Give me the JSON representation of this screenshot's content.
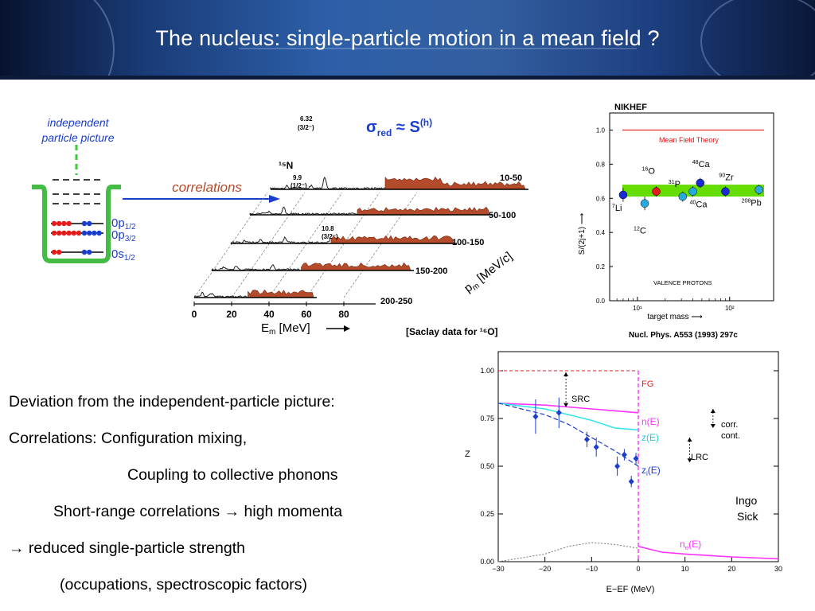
{
  "slide": {
    "title": "The nucleus: single-particle motion in a mean field ?",
    "bullets": [
      "Deviation from the independent-particle picture:",
      "Correlations: Configuration mixing,",
      "Coupling to collective phonons",
      "Short-range correlations → high momenta",
      "→ reduced single-particle strength",
      "(occupations, spectroscopic factors)"
    ],
    "credit": [
      "Ingo",
      "Sick"
    ]
  },
  "colors": {
    "accent_blue": "#1a3dcc",
    "red": "#e31b1b",
    "green": "#66dd00",
    "magenta": "#ff33ff",
    "cyan": "#33e6ee",
    "brown": "#b44b2a"
  },
  "well": {
    "heading": [
      "independent",
      "particle picture"
    ],
    "arrow_label": "correlations",
    "levels": [
      "0p1/2",
      "0p3/2",
      "0s1/2"
    ]
  },
  "spectra": {
    "formula": "σred ≈ S(h)",
    "nucleus": "15N",
    "peak_labels": [
      "6.32",
      "(3/2⁻)",
      "9.9",
      "(1/2⁻)",
      "10.8",
      "(3/2⁻)"
    ],
    "range_labels": [
      "10-50",
      "50-100",
      "100-150",
      "150-200",
      "200-250"
    ],
    "x_ticks": [
      "0",
      "20",
      "40",
      "60",
      "80"
    ],
    "x_label": "Em [MeV]",
    "pm_label": "pm [MeV/c]",
    "source": "[Saclay data for ¹⁶O]"
  },
  "chart_data": [
    {
      "type": "scatter",
      "title": "NIKHEF",
      "subtitle": "Mean Field Theory",
      "xlabel": "target mass",
      "ylabel": "S/(2j+1)",
      "x_scale": "log",
      "xlim": [
        5,
        300
      ],
      "ylim": [
        0.0,
        1.1
      ],
      "x_ticks": [
        "10¹",
        "10²"
      ],
      "y_ticks": [
        "0.0",
        "0.2",
        "0.4",
        "0.6",
        "0.8",
        "1.0"
      ],
      "mean_field_value": 1.0,
      "band": [
        0.61,
        0.68
      ],
      "points": [
        {
          "label": "7Li",
          "x": 7,
          "y": 0.62,
          "err": 0.04,
          "color": "#1a2ad8"
        },
        {
          "label": "12C",
          "x": 12,
          "y": 0.57,
          "err": 0.04,
          "color": "#2aa8e0"
        },
        {
          "label": "16O",
          "x": 16,
          "y": 0.64,
          "err": 0.03,
          "color": "#e31b1b"
        },
        {
          "label": "31P",
          "x": 31,
          "y": 0.61,
          "err": 0.03,
          "color": "#2aa8e0"
        },
        {
          "label": "40Ca",
          "x": 40,
          "y": 0.64,
          "err": 0.03,
          "color": "#2aa8e0"
        },
        {
          "label": "48Ca",
          "x": 48,
          "y": 0.69,
          "err": 0.03,
          "color": "#1a2ad8"
        },
        {
          "label": "90Zr",
          "x": 90,
          "y": 0.64,
          "err": 0.03,
          "color": "#1a2ad8"
        },
        {
          "label": "208Pb",
          "x": 208,
          "y": 0.65,
          "err": 0.03,
          "color": "#2aa8e0"
        }
      ],
      "annotation": "VALENCE PROTONS",
      "reference": "Nucl. Phys. A553 (1993) 297c"
    },
    {
      "type": "line",
      "xlabel": "E−EF (MeV)",
      "ylabel": "Z",
      "xlim": [
        -30,
        30
      ],
      "ylim": [
        0.0,
        1.1
      ],
      "x_ticks": [
        "−30",
        "−20",
        "−10",
        "0",
        "10",
        "20",
        "30"
      ],
      "y_ticks": [
        "0.00",
        "0.25",
        "0.50",
        "0.75",
        "1.00"
      ],
      "annotations": [
        "FG",
        "SRC",
        "LRC",
        "corr.",
        "cont."
      ],
      "series": [
        {
          "name": "n(E)",
          "x": [
            -30,
            -20,
            -10,
            0
          ],
          "y": [
            0.83,
            0.82,
            0.8,
            0.78
          ]
        },
        {
          "name": "z(E)",
          "x": [
            -30,
            -20,
            -10,
            -5,
            0
          ],
          "y": [
            0.83,
            0.8,
            0.74,
            0.7,
            0.69
          ]
        },
        {
          "name": "zi(E)",
          "x": [
            -30,
            -20,
            -15,
            -10,
            -5,
            0
          ],
          "y": [
            0.83,
            0.77,
            0.72,
            0.65,
            0.58,
            0.5
          ]
        },
        {
          "name": "ne(E)",
          "x": [
            0,
            5,
            10,
            20,
            30
          ],
          "y": [
            0.08,
            0.05,
            0.04,
            0.025,
            0.015
          ]
        },
        {
          "name": "",
          "x": [
            -30,
            -20,
            -15,
            -10,
            -5,
            0
          ],
          "y": [
            0.0,
            0.04,
            0.08,
            0.1,
            0.09,
            0.07
          ]
        }
      ],
      "points": [
        {
          "x": -22,
          "y": 0.76,
          "err": 0.09
        },
        {
          "x": -17,
          "y": 0.78,
          "err": 0.08
        },
        {
          "x": -11,
          "y": 0.64,
          "err": 0.04
        },
        {
          "x": -9,
          "y": 0.6,
          "err": 0.05
        },
        {
          "x": -4.5,
          "y": 0.5,
          "err": 0.05
        },
        {
          "x": -3,
          "y": 0.56,
          "err": 0.03
        },
        {
          "x": -1.5,
          "y": 0.42,
          "err": 0.03
        },
        {
          "x": -0.5,
          "y": 0.54,
          "err": 0.03
        }
      ],
      "fg_level": 1.0
    }
  ]
}
